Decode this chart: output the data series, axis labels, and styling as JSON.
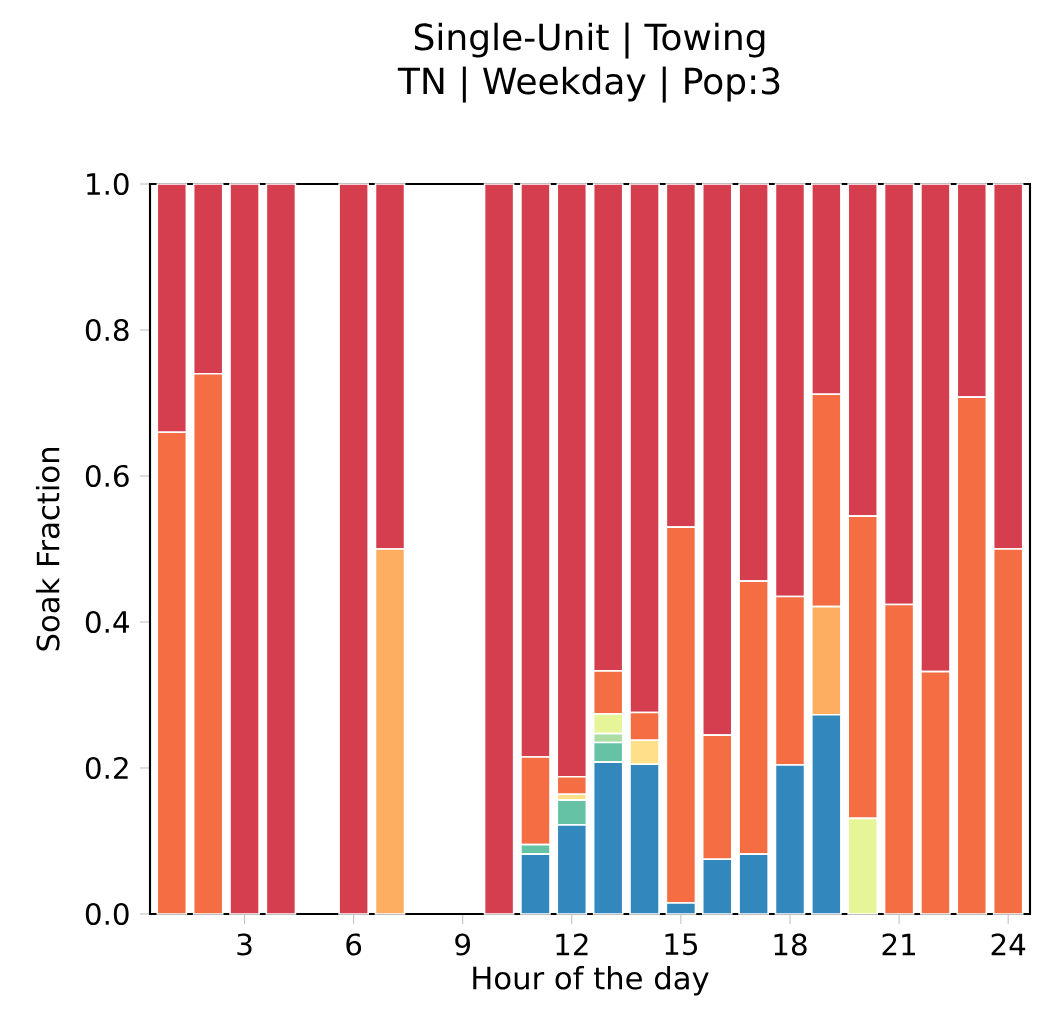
{
  "chart_data": {
    "type": "bar",
    "stacked": true,
    "title": "Single-Unit | Towing",
    "subtitle": "TN | Weekday | Pop:3",
    "xlabel": "Hour of the day",
    "ylabel": "Soak Fraction",
    "x": [
      1,
      2,
      3,
      4,
      5,
      6,
      7,
      8,
      9,
      10,
      11,
      12,
      13,
      14,
      15,
      16,
      17,
      18,
      19,
      20,
      21,
      22,
      23,
      24
    ],
    "xlim": [
      0.4,
      24.6
    ],
    "xticks": [
      3,
      6,
      9,
      12,
      15,
      18,
      21,
      24
    ],
    "ylim": [
      0,
      1
    ],
    "yticks": [
      {
        "value": 0,
        "label": "0.0"
      },
      0.2,
      0.4,
      0.6,
      0.8,
      {
        "value": 1,
        "label": "1.0"
      }
    ],
    "grid": false,
    "series": [
      {
        "color": "#3288bd",
        "values": [
          0,
          0,
          0,
          0,
          0,
          0,
          0,
          0,
          0,
          0,
          0.082,
          0.122,
          0.208,
          0.205,
          0.015,
          0.075,
          0.082,
          0.204,
          0.273,
          0,
          0,
          0,
          0,
          0
        ]
      },
      {
        "color": "#66c2a5",
        "values": [
          0,
          0,
          0,
          0,
          0,
          0,
          0,
          0,
          0,
          0,
          0.013,
          0.034,
          0.027,
          0,
          0,
          0,
          0,
          0,
          0,
          0,
          0,
          0,
          0,
          0
        ]
      },
      {
        "color": "#abdda4",
        "values": [
          0,
          0,
          0,
          0,
          0,
          0,
          0,
          0,
          0,
          0,
          0,
          0,
          0.012,
          0,
          0,
          0,
          0,
          0,
          0,
          0,
          0,
          0,
          0,
          0
        ]
      },
      {
        "color": "#e6f598",
        "values": [
          0,
          0,
          0,
          0,
          0,
          0,
          0,
          0,
          0,
          0,
          0,
          0,
          0.027,
          0,
          0,
          0,
          0,
          0,
          0,
          0.131,
          0,
          0,
          0,
          0
        ]
      },
      {
        "color": "#fee08b",
        "values": [
          0,
          0,
          0,
          0,
          0,
          0,
          0,
          0,
          0,
          0,
          0,
          0.008,
          0,
          0.033,
          0,
          0,
          0,
          0,
          0,
          0,
          0,
          0,
          0,
          0
        ]
      },
      {
        "color": "#fdae61",
        "values": [
          0,
          0,
          0,
          0,
          0,
          0,
          0.5,
          0,
          0,
          0,
          0,
          0,
          0,
          0,
          0,
          0,
          0,
          0,
          0.148,
          0,
          0,
          0,
          0,
          0
        ]
      },
      {
        "color": "#f46d43",
        "values": [
          0.66,
          0.74,
          0,
          0,
          0,
          0,
          0,
          0,
          0,
          0,
          0.12,
          0.024,
          0.059,
          0.038,
          0.515,
          0.17,
          0.374,
          0.231,
          0.291,
          0.414,
          0.424,
          0.332,
          0.708,
          0.5
        ]
      },
      {
        "color": "#d53e4f",
        "values": [
          0.34,
          0.26,
          1,
          1,
          0,
          1,
          0.5,
          0,
          0,
          1,
          0.785,
          0.812,
          0.667,
          0.724,
          0.47,
          0.755,
          0.544,
          0.565,
          0.288,
          0.455,
          0.576,
          0.668,
          0.292,
          0.5
        ]
      }
    ]
  }
}
